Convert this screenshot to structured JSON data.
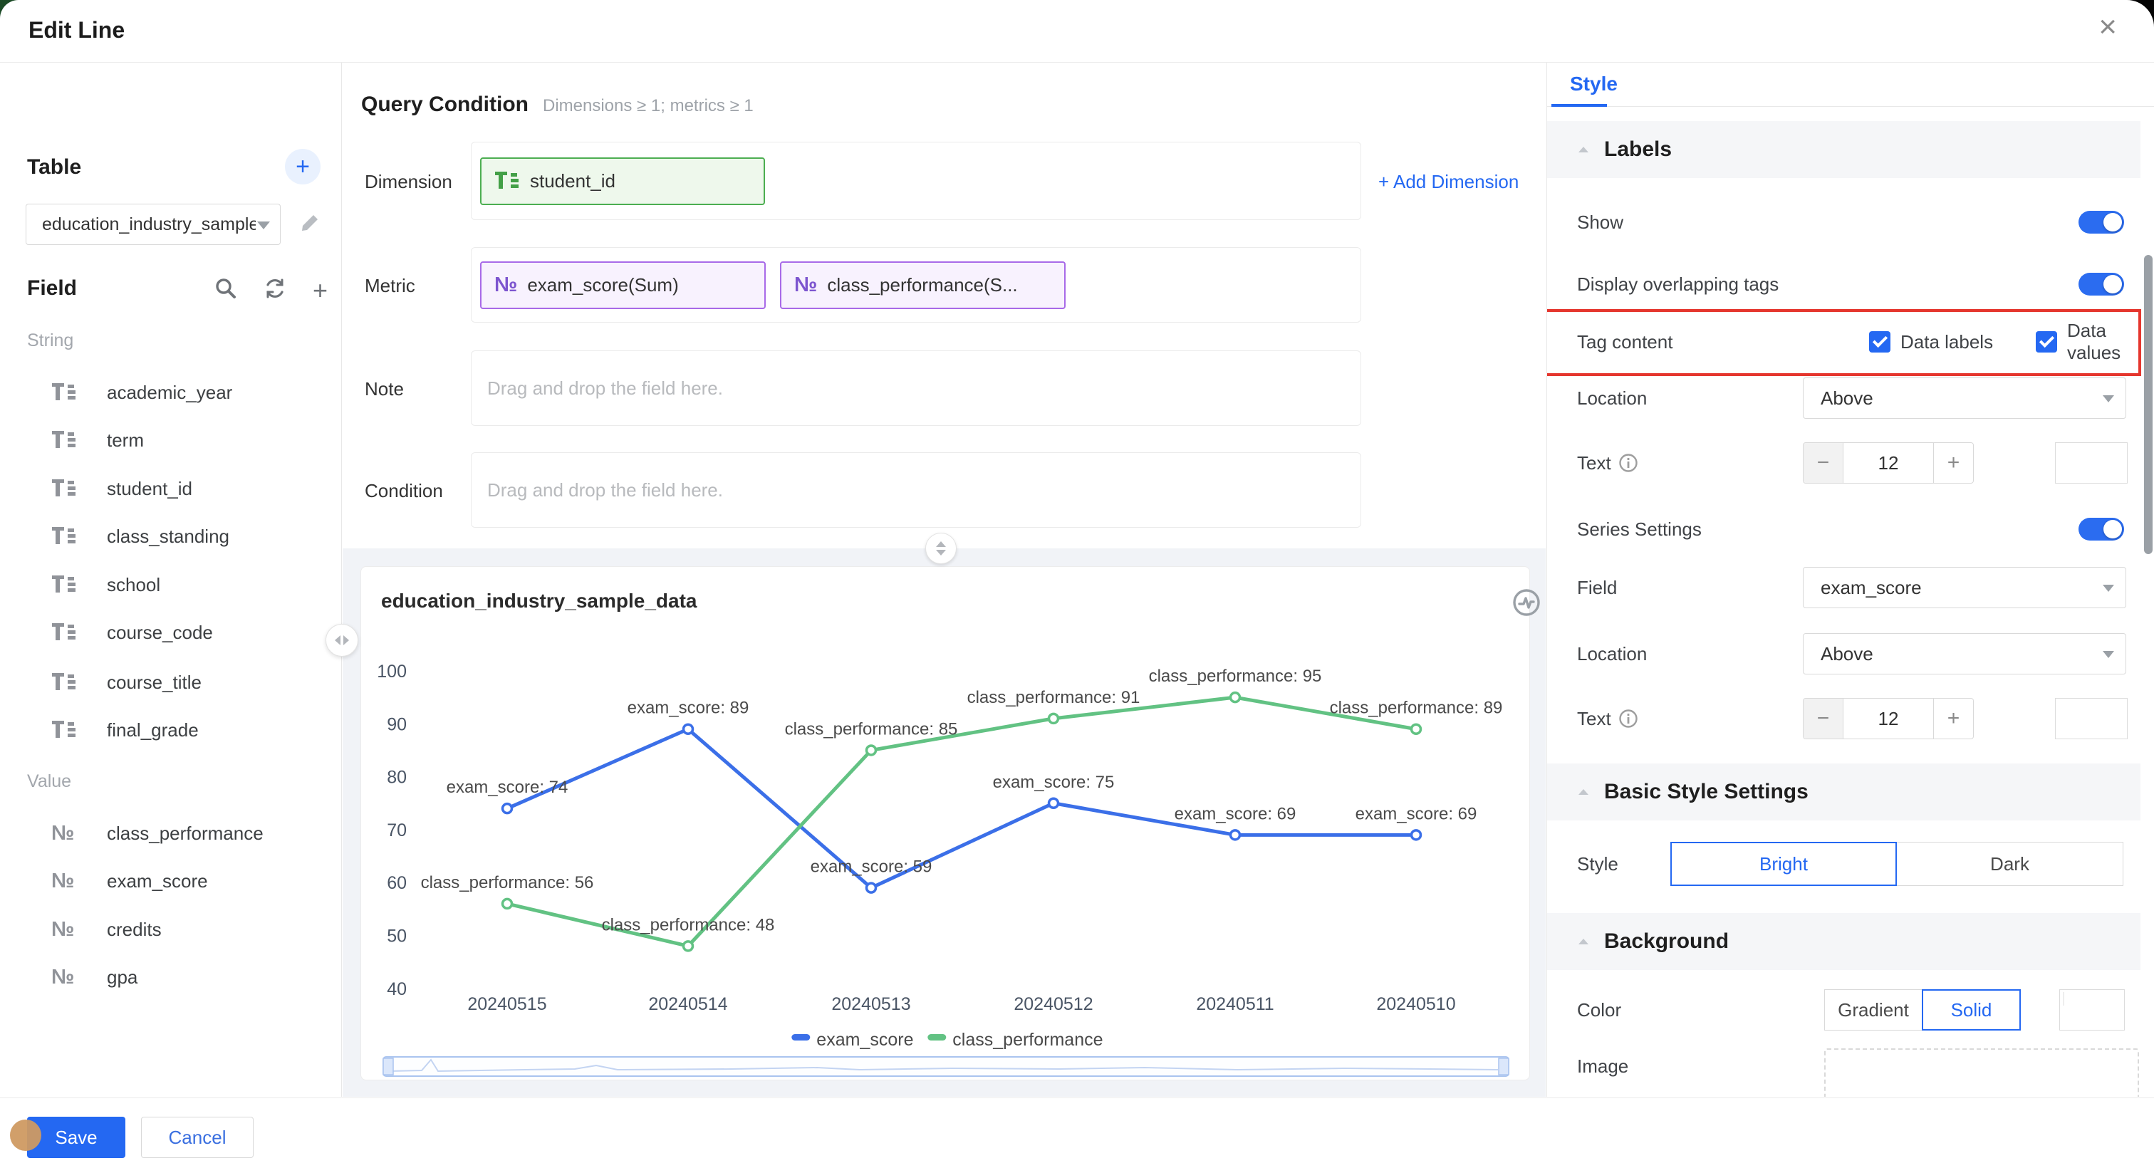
{
  "window": {
    "title": "Edit Line",
    "close_icon": "×"
  },
  "sidebar": {
    "table_label": "Table",
    "add_icon": "+",
    "table_select_value": "education_industry_sample",
    "field_label": "Field",
    "string_group": "String",
    "string_fields": [
      "academic_year",
      "term",
      "student_id",
      "class_standing",
      "school",
      "course_code",
      "course_title",
      "final_grade"
    ],
    "value_group": "Value",
    "value_fields": [
      "class_performance",
      "exam_score",
      "credits",
      "gpa"
    ],
    "number_glyph": "№"
  },
  "query": {
    "title": "Query Condition",
    "hint": "Dimensions ≥ 1; metrics ≥ 1",
    "dimension_label": "Dimension",
    "dimension_chip": "student_id",
    "add_dimension": "+ Add Dimension",
    "metric_label": "Metric",
    "metric_chips": [
      "exam_score(Sum)",
      "class_performance(S..."
    ],
    "note_label": "Note",
    "condition_label": "Condition",
    "drop_placeholder": "Drag and drop the field here."
  },
  "chart_data": {
    "type": "line",
    "title": "education_industry_sample_data",
    "categories": [
      "20240515",
      "20240514",
      "20240513",
      "20240512",
      "20240511",
      "20240510"
    ],
    "series": [
      {
        "name": "exam_score",
        "color": "#3b6fe8",
        "values": [
          74,
          89,
          59,
          75,
          69,
          69
        ]
      },
      {
        "name": "class_performance",
        "color": "#62c283",
        "values": [
          56,
          48,
          85,
          91,
          95,
          89
        ]
      }
    ],
    "y_ticks": [
      40,
      50,
      60,
      70,
      80,
      90,
      100
    ],
    "ylim": [
      40,
      105
    ],
    "grid": false,
    "legend_position": "bottom",
    "data_label_separator": ":  ",
    "axis_color": "#4a5565",
    "label_color": "#4a4a4a"
  },
  "style_panel": {
    "tab": "Style",
    "labels_section": "Labels",
    "show_label": "Show",
    "overlap_label": "Display overlapping tags",
    "tag_content_label": "Tag content",
    "data_labels": "Data labels",
    "data_values": "Data values",
    "location_label": "Location",
    "location_value": "Above",
    "text_label": "Text",
    "text_size": "12",
    "info_icon": "i",
    "minus_icon": "−",
    "plus_icon": "+",
    "series_settings_label": "Series Settings",
    "field_label": "Field",
    "field_value": "exam_score",
    "location2_value": "Above",
    "text2_size": "12",
    "basic_section": "Basic Style Settings",
    "style_label": "Style",
    "bright": "Bright",
    "dark": "Dark",
    "background_section": "Background",
    "color_label": "Color",
    "gradient": "Gradient",
    "solid": "Solid",
    "image_label": "Image",
    "highlight_color": "#e5362e",
    "accent_color": "#2468f2"
  },
  "footer": {
    "save": "Save",
    "cancel": "Cancel"
  }
}
